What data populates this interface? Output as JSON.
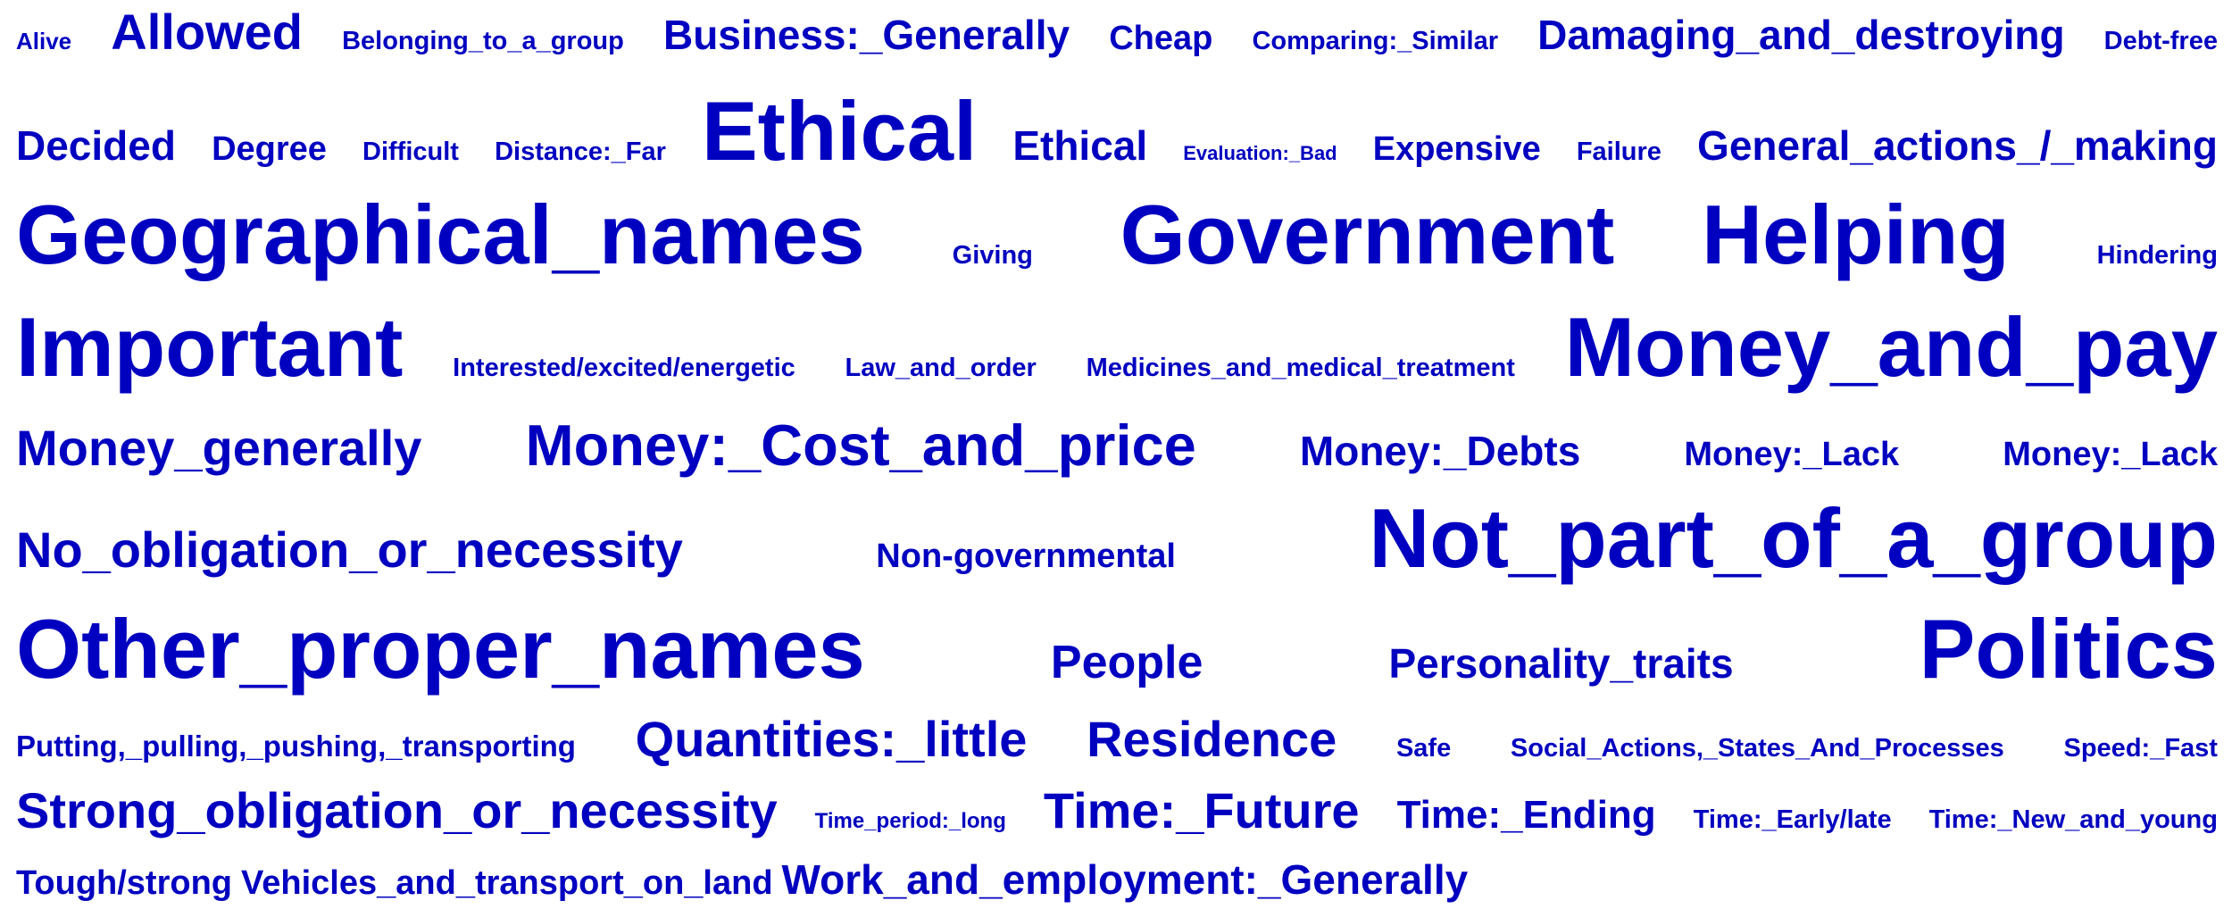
{
  "text_color": "#0000c0",
  "background": "#ffffff",
  "rows": [
    [
      "Alive",
      "Allowed",
      "Belonging_to_a_group",
      "Business:_Generally",
      "Cheap",
      "Comparing:_Similar",
      "Damaging_and_destroying",
      "Debt-free"
    ],
    [
      "Decided",
      "Degree",
      "Difficult",
      "Distance:_Far",
      "Ethical",
      "Ethical",
      "Evaluation:_Bad",
      "Expensive",
      "Failure",
      "General_actions_/_making"
    ],
    [
      "Geographical_names",
      "Giving",
      "Government",
      "Helping",
      "Hindering"
    ],
    [
      "Important",
      "Interested/excited/energetic",
      "Law_and_order",
      "Medicines_and_medical_treatment",
      "Money_and_pay"
    ],
    [
      "Money_generally",
      "Money:_Cost_and_price",
      "Money:_Debts",
      "Money:_Lack",
      "Money:_Lack"
    ],
    [
      "No_obligation_or_necessity",
      "Non-governmental",
      "Not_part_of_a_group"
    ],
    [
      "Other_proper_names",
      "People",
      "Personality_traits",
      "Politics"
    ],
    [
      "Putting,_pulling,_pushing,_transporting",
      "Quantities:_little",
      "Residence",
      "Safe",
      "Social_Actions,_States_And_Processes",
      "Speed:_Fast"
    ],
    [
      "Strong_obligation_or_necessity",
      "Time_period:_long",
      "Time:_Future",
      "Time:_Ending",
      "Time:_Early/late",
      "Time:_New_and_young"
    ],
    [
      "Tough/strong",
      "Vehicles_and_transport_on_land",
      "Work_and_employment:_Generally"
    ]
  ]
}
